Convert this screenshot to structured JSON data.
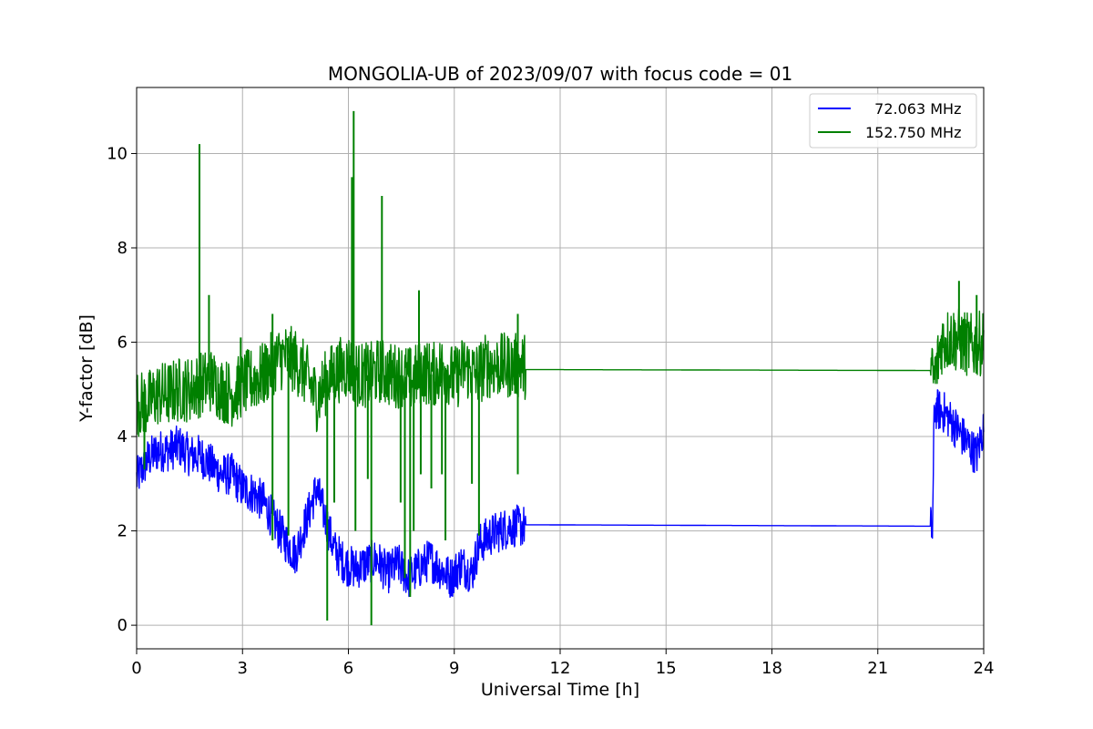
{
  "chart_data": {
    "type": "line",
    "title": "MONGOLIA-UB of 2023/09/07 with focus code = 01",
    "xlabel": "Universal Time [h]",
    "ylabel": "Y-factor [dB]",
    "xlim": [
      0,
      24
    ],
    "ylim": [
      -0.5,
      11.4
    ],
    "xticks": [
      0,
      3,
      6,
      9,
      12,
      15,
      18,
      21,
      24
    ],
    "yticks": [
      0,
      2,
      4,
      6,
      8,
      10
    ],
    "grid": true,
    "legend_position": "top-right",
    "series": [
      {
        "name": "  72.063 MHz",
        "color": "#0000ff",
        "points": [
          [
            0.0,
            3.1
          ],
          [
            0.3,
            3.5
          ],
          [
            0.6,
            3.7
          ],
          [
            0.9,
            3.7
          ],
          [
            1.2,
            3.8
          ],
          [
            1.5,
            3.6
          ],
          [
            1.8,
            3.6
          ],
          [
            2.1,
            3.4
          ],
          [
            2.4,
            3.2
          ],
          [
            2.7,
            3.2
          ],
          [
            3.0,
            2.9
          ],
          [
            3.3,
            2.8
          ],
          [
            3.6,
            2.6
          ],
          [
            3.9,
            2.2
          ],
          [
            4.2,
            1.8
          ],
          [
            4.5,
            1.5
          ],
          [
            4.8,
            2.2
          ],
          [
            5.1,
            2.9
          ],
          [
            5.3,
            2.4
          ],
          [
            5.6,
            1.6
          ],
          [
            5.9,
            1.3
          ],
          [
            6.2,
            1.2
          ],
          [
            6.5,
            1.3
          ],
          [
            6.8,
            1.4
          ],
          [
            7.1,
            1.1
          ],
          [
            7.4,
            1.3
          ],
          [
            7.7,
            1.0
          ],
          [
            8.0,
            1.2
          ],
          [
            8.3,
            1.4
          ],
          [
            8.6,
            1.2
          ],
          [
            8.9,
            1.0
          ],
          [
            9.2,
            1.3
          ],
          [
            9.5,
            1.1
          ],
          [
            9.7,
            1.7
          ],
          [
            10.0,
            1.9
          ],
          [
            10.3,
            2.0
          ],
          [
            10.6,
            2.1
          ],
          [
            11.0,
            2.1
          ],
          [
            11.02,
            2.13
          ],
          [
            22.5,
            2.1
          ],
          [
            22.55,
            1.95
          ],
          [
            22.6,
            4.6
          ],
          [
            22.9,
            4.5
          ],
          [
            23.2,
            4.2
          ],
          [
            23.5,
            3.9
          ],
          [
            23.8,
            3.6
          ],
          [
            24.0,
            4.2
          ]
        ]
      },
      {
        "name": "152.750 MHz",
        "color": "#008000",
        "points": [
          [
            0.0,
            4.7
          ],
          [
            0.3,
            4.7
          ],
          [
            0.6,
            4.9
          ],
          [
            0.9,
            4.9
          ],
          [
            1.2,
            5.0
          ],
          [
            1.5,
            5.0
          ],
          [
            1.8,
            5.1
          ],
          [
            2.1,
            5.2
          ],
          [
            2.4,
            5.0
          ],
          [
            2.7,
            4.9
          ],
          [
            3.0,
            5.1
          ],
          [
            3.3,
            5.2
          ],
          [
            3.6,
            5.3
          ],
          [
            3.9,
            5.6
          ],
          [
            4.2,
            5.7
          ],
          [
            4.5,
            5.6
          ],
          [
            4.8,
            5.3
          ],
          [
            5.1,
            4.8
          ],
          [
            5.4,
            5.2
          ],
          [
            5.7,
            5.4
          ],
          [
            6.0,
            5.5
          ],
          [
            6.3,
            5.3
          ],
          [
            6.6,
            5.3
          ],
          [
            6.9,
            5.4
          ],
          [
            7.2,
            5.3
          ],
          [
            7.5,
            5.3
          ],
          [
            7.8,
            5.2
          ],
          [
            8.1,
            5.4
          ],
          [
            8.4,
            5.3
          ],
          [
            8.7,
            5.5
          ],
          [
            9.0,
            5.2
          ],
          [
            9.3,
            5.5
          ],
          [
            9.6,
            5.3
          ],
          [
            9.9,
            5.5
          ],
          [
            10.2,
            5.5
          ],
          [
            10.5,
            5.5
          ],
          [
            10.8,
            5.5
          ],
          [
            11.0,
            5.5
          ],
          [
            11.02,
            5.42
          ],
          [
            22.5,
            5.4
          ],
          [
            22.6,
            5.2
          ],
          [
            22.8,
            6.0
          ],
          [
            23.1,
            6.1
          ],
          [
            23.4,
            6.0
          ],
          [
            23.7,
            5.9
          ],
          [
            24.0,
            6.0
          ]
        ],
        "spikes": [
          [
            1.78,
            10.2
          ],
          [
            2.05,
            7.0
          ],
          [
            2.95,
            6.1
          ],
          [
            3.85,
            6.6
          ],
          [
            6.1,
            9.5
          ],
          [
            6.15,
            10.9
          ],
          [
            6.95,
            9.1
          ],
          [
            8.0,
            7.1
          ],
          [
            10.8,
            6.6
          ],
          [
            23.3,
            7.3
          ],
          [
            23.8,
            7.0
          ]
        ],
        "dips": [
          [
            0.22,
            3.3
          ],
          [
            3.85,
            1.8
          ],
          [
            4.3,
            1.9
          ],
          [
            5.4,
            0.1
          ],
          [
            5.6,
            2.6
          ],
          [
            6.2,
            2.0
          ],
          [
            6.55,
            3.1
          ],
          [
            6.65,
            0.0
          ],
          [
            7.48,
            2.6
          ],
          [
            7.6,
            1.0
          ],
          [
            7.75,
            0.6
          ],
          [
            7.85,
            2.0
          ],
          [
            8.05,
            3.2
          ],
          [
            8.35,
            2.9
          ],
          [
            8.65,
            3.2
          ],
          [
            8.75,
            1.8
          ],
          [
            9.5,
            3.0
          ],
          [
            9.7,
            1.9
          ],
          [
            10.8,
            3.2
          ]
        ]
      }
    ]
  }
}
